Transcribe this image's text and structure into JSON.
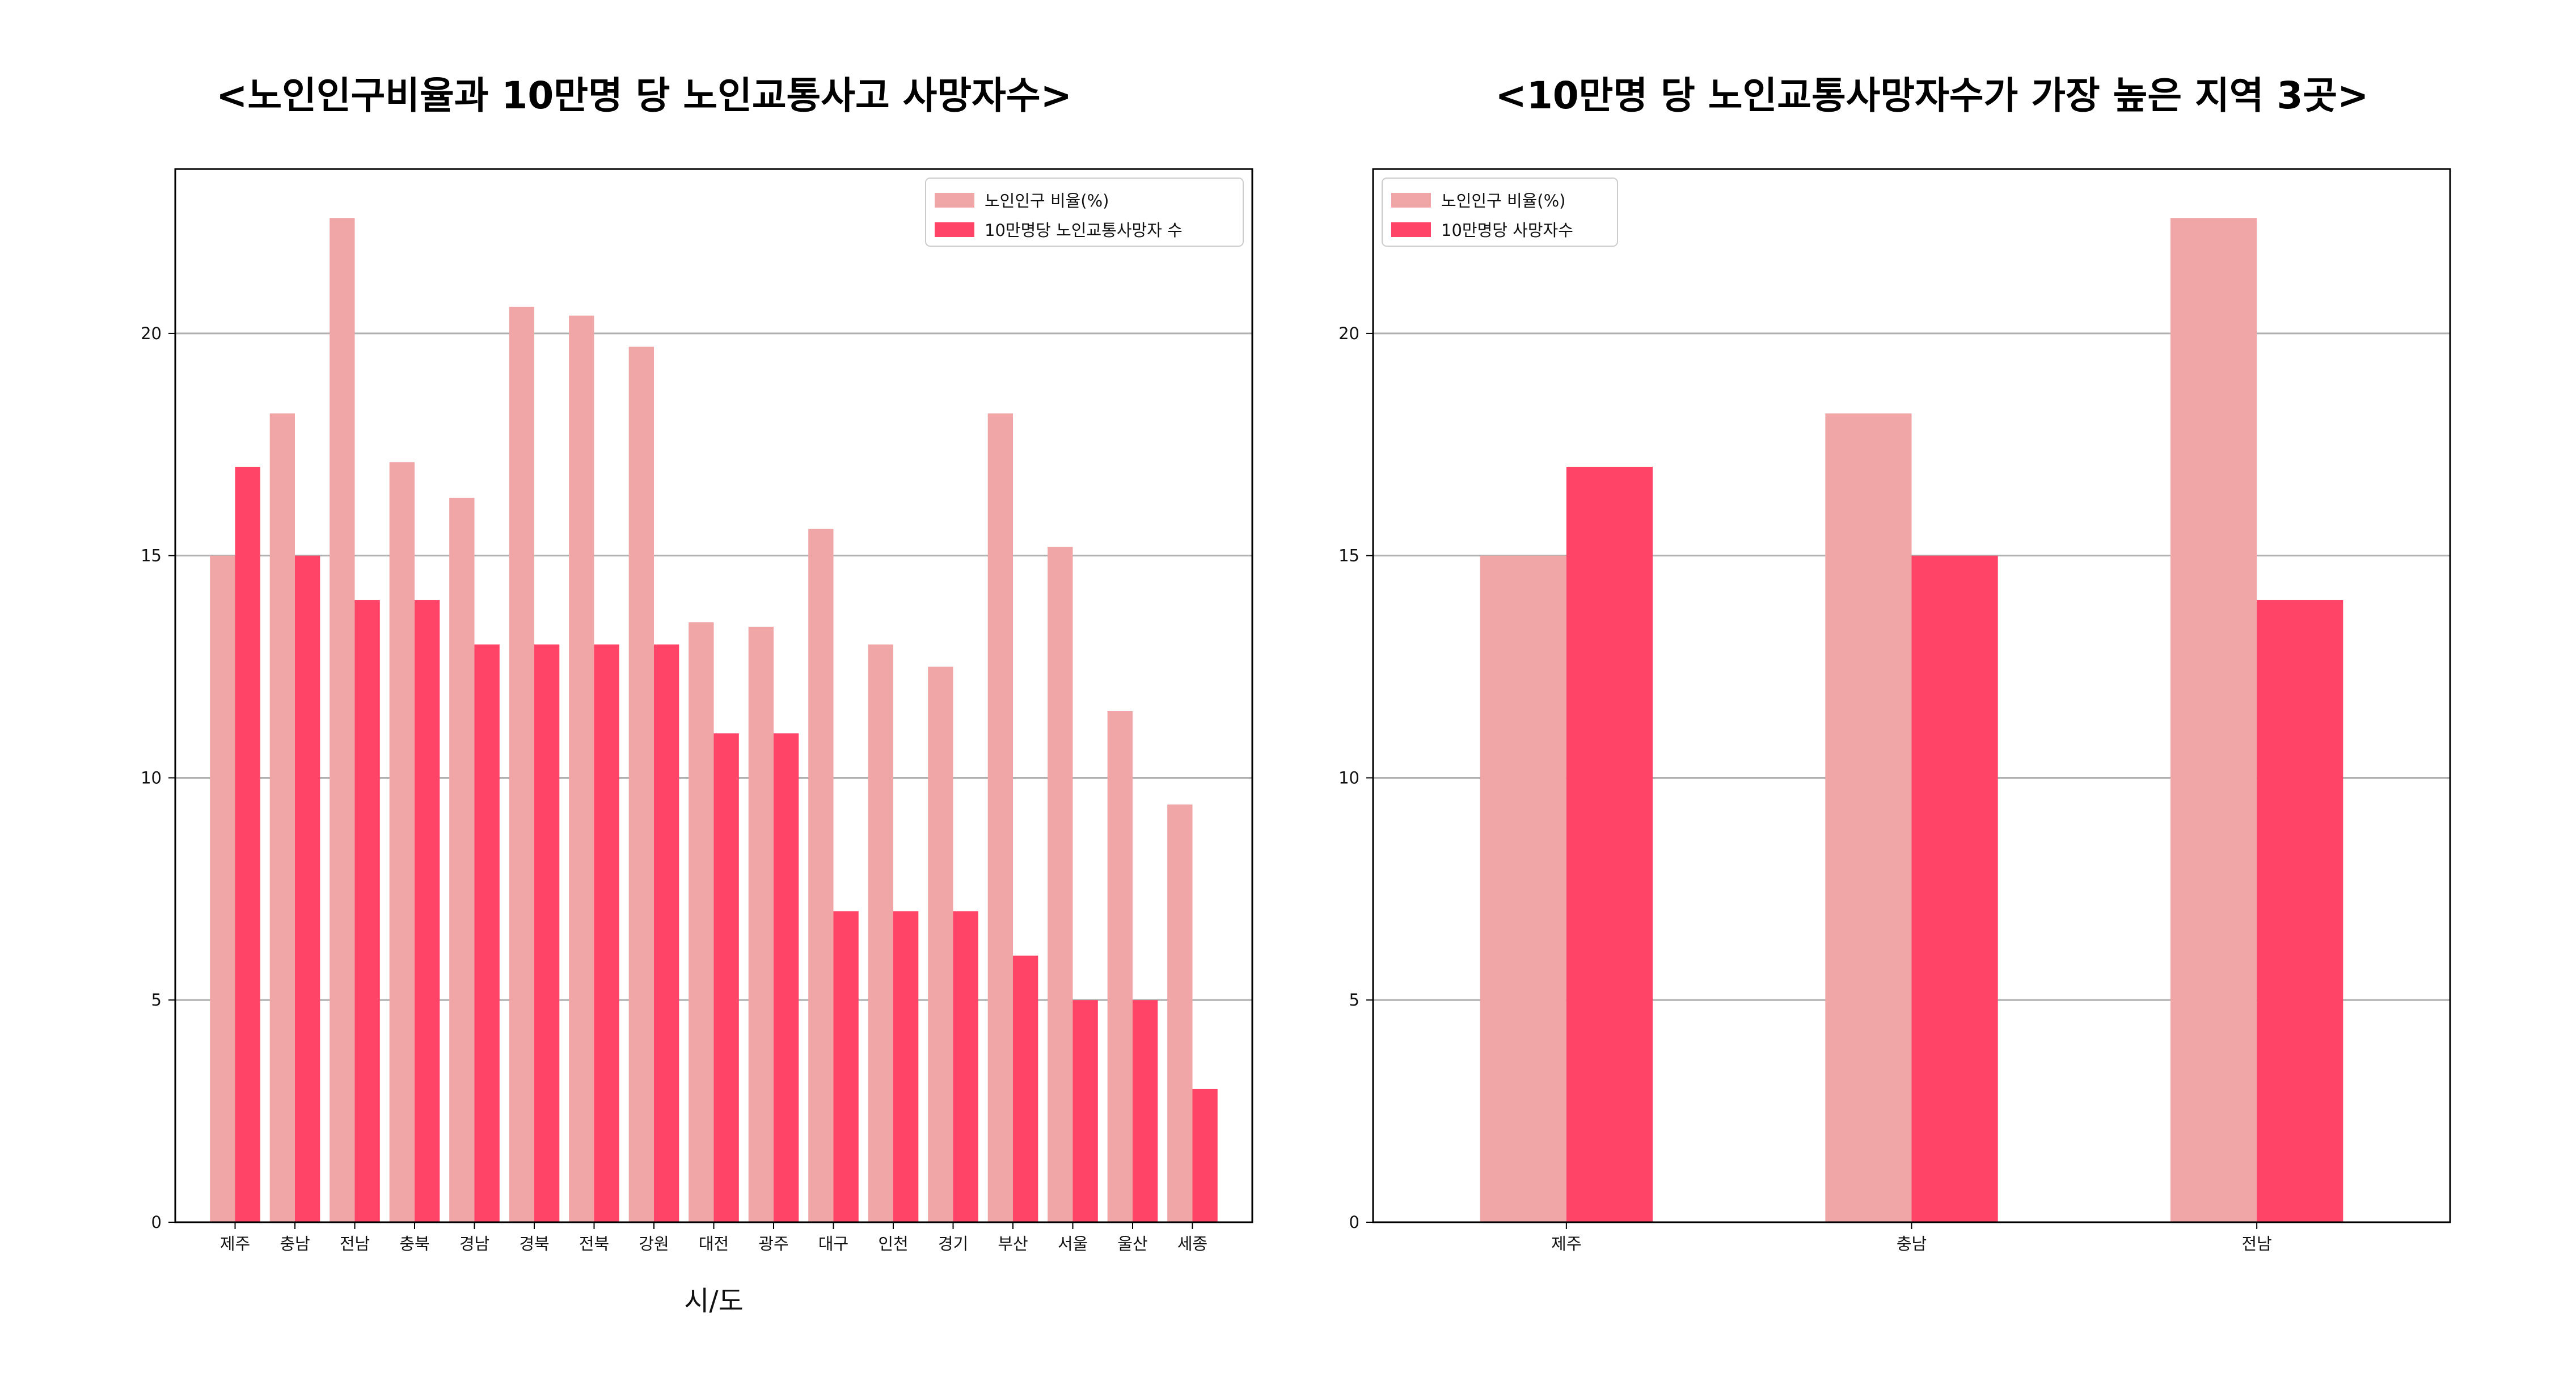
{
  "colors": {
    "ratio": "#f0a6a7",
    "deaths": "#ff4468",
    "grid": "#b0b0b0",
    "axes": "#000000"
  },
  "chart_data": [
    {
      "type": "bar",
      "title": "<노인인구비율과 10만명 당 노인교통사고 사망자수>",
      "xlabel": "시/도",
      "ylabel": "",
      "ylim": [
        0,
        23.7
      ],
      "yticks": [
        0,
        5,
        10,
        15,
        20
      ],
      "grid": "y",
      "legend_position": "top-right",
      "categories": [
        "제주",
        "충남",
        "전남",
        "충북",
        "경남",
        "경북",
        "전북",
        "강원",
        "대전",
        "광주",
        "대구",
        "인천",
        "경기",
        "부산",
        "서울",
        "울산",
        "세종"
      ],
      "series": [
        {
          "name": "노인인구 비율(%)",
          "values": [
            15.0,
            18.2,
            22.6,
            17.1,
            16.3,
            20.6,
            20.4,
            19.7,
            13.5,
            13.4,
            15.6,
            13.0,
            12.5,
            18.2,
            15.2,
            11.5,
            9.4
          ]
        },
        {
          "name": "10만명당 노인교통사망자 수",
          "values": [
            17,
            15,
            14,
            14,
            13,
            13,
            13,
            13,
            11,
            11,
            7,
            7,
            7,
            6,
            5,
            5,
            3
          ]
        }
      ]
    },
    {
      "type": "bar",
      "title": "<10만명 당 노인교통사망자수가 가장 높은 지역 3곳>",
      "xlabel": "",
      "ylabel": "",
      "ylim": [
        0,
        23.7
      ],
      "yticks": [
        0,
        5,
        10,
        15,
        20
      ],
      "grid": "y",
      "legend_position": "top-left",
      "categories": [
        "제주",
        "충남",
        "전남"
      ],
      "series": [
        {
          "name": "노인인구 비율(%)",
          "values": [
            15.0,
            18.2,
            22.6
          ]
        },
        {
          "name": "10만명당 사망자수",
          "values": [
            17,
            15,
            14
          ]
        }
      ]
    }
  ]
}
